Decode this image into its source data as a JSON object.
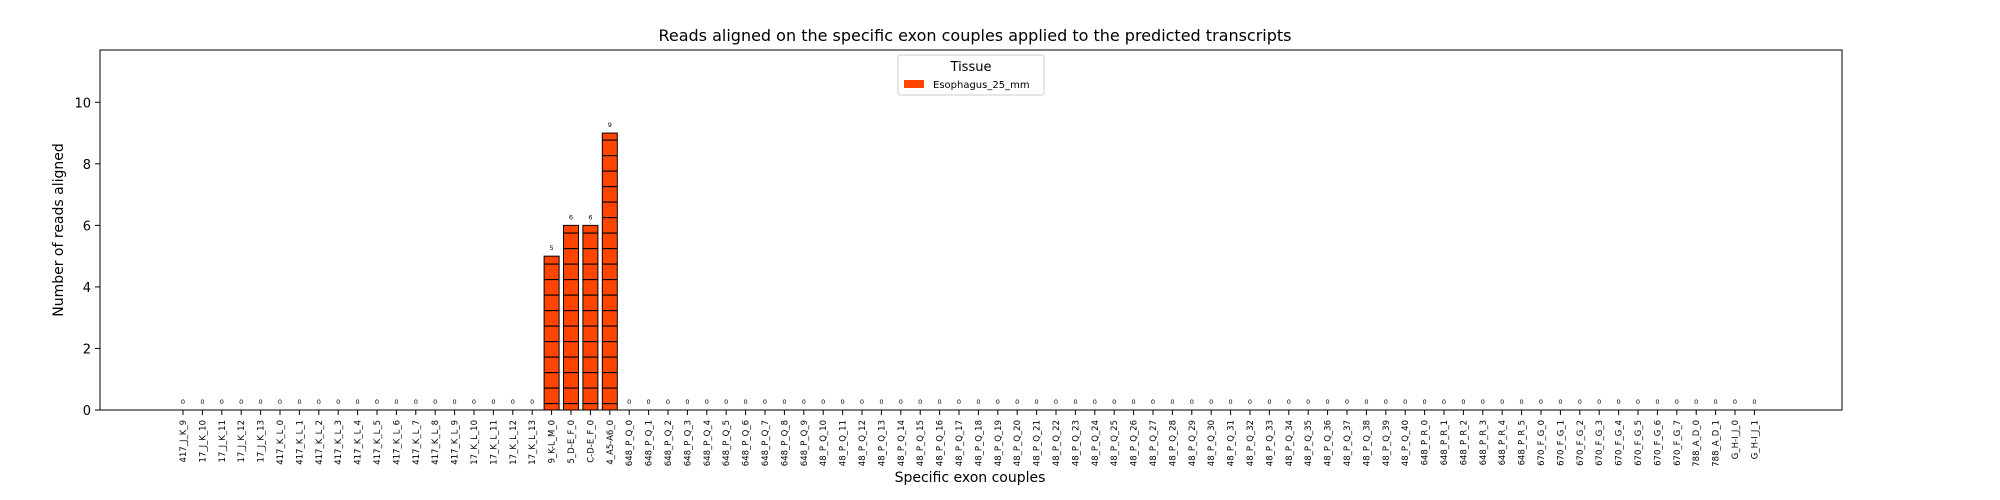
{
  "chart_data": {
    "type": "bar",
    "title": "Reads aligned on the specific exon couples applied to the predicted transcripts",
    "xlabel": "Specific exon couples",
    "ylabel": "Number of reads aligned",
    "ylim": [
      0,
      11.7
    ],
    "yticks": [
      0,
      2,
      4,
      6,
      8,
      10
    ],
    "grid": false,
    "legend": {
      "title": "Tissue",
      "placement": "top-center"
    },
    "bar_color": "#ff4500",
    "hatch": "horizontal lines",
    "categories": [
      "417_J_K_9",
      "17_J_K_10",
      "17_J_K_11",
      "17_J_K_12",
      "17_J_K_13",
      "417_K_L_0",
      "417_K_L_1",
      "417_K_L_2",
      "417_K_L_3",
      "417_K_L_4",
      "417_K_L_5",
      "417_K_L_6",
      "417_K_L_7",
      "417_K_L_8",
      "417_K_L_9",
      "17_K_L_10",
      "17_K_L_11",
      "17_K_L_12",
      "17_K_L_13",
      "9_K-L_M_0",
      "5_D-E_F_0",
      "C-D-E_F_0",
      "4_A5-A6_0",
      "648_P_Q_0",
      "648_P_Q_1",
      "648_P_Q_2",
      "648_P_Q_3",
      "648_P_Q_4",
      "648_P_Q_5",
      "648_P_Q_6",
      "648_P_Q_7",
      "648_P_Q_8",
      "648_P_Q_9",
      "48_P_Q_10",
      "48_P_Q_11",
      "48_P_Q_12",
      "48_P_Q_13",
      "48_P_Q_14",
      "48_P_Q_15",
      "48_P_Q_16",
      "48_P_Q_17",
      "48_P_Q_18",
      "48_P_Q_19",
      "48_P_Q_20",
      "48_P_Q_21",
      "48_P_Q_22",
      "48_P_Q_23",
      "48_P_Q_24",
      "48_P_Q_25",
      "48_P_Q_26",
      "48_P_Q_27",
      "48_P_Q_28",
      "48_P_Q_29",
      "48_P_Q_30",
      "48_P_Q_31",
      "48_P_Q_32",
      "48_P_Q_33",
      "48_P_Q_34",
      "48_P_Q_35",
      "48_P_Q_36",
      "48_P_Q_37",
      "48_P_Q_38",
      "48_P_Q_39",
      "48_P_Q_40",
      "648_P_R_0",
      "648_P_R_1",
      "648_P_R_2",
      "648_P_R_3",
      "648_P_R_4",
      "648_P_R_5",
      "670_F_G_0",
      "670_F_G_1",
      "670_F_G_2",
      "670_F_G_3",
      "670_F_G_4",
      "670_F_G_5",
      "670_F_G_6",
      "670_F_G_7",
      "788_A_D_0",
      "788_A_D_1",
      "G_H-I_J_0",
      "G_H-I_J_1"
    ],
    "series": [
      {
        "name": "Esophagus_25_mm",
        "values": [
          0,
          0,
          0,
          0,
          0,
          0,
          0,
          0,
          0,
          0,
          0,
          0,
          0,
          0,
          0,
          0,
          0,
          0,
          0,
          5,
          6,
          6,
          9,
          0,
          0,
          0,
          0,
          0,
          0,
          0,
          0,
          0,
          0,
          0,
          0,
          0,
          0,
          0,
          0,
          0,
          0,
          0,
          0,
          0,
          0,
          0,
          0,
          0,
          0,
          0,
          0,
          0,
          0,
          0,
          0,
          0,
          0,
          0,
          0,
          0,
          0,
          0,
          0,
          0,
          0,
          0,
          0,
          0,
          0,
          0,
          0,
          0,
          0,
          0,
          0,
          0,
          0,
          0,
          0,
          0,
          0,
          0
        ]
      }
    ]
  }
}
